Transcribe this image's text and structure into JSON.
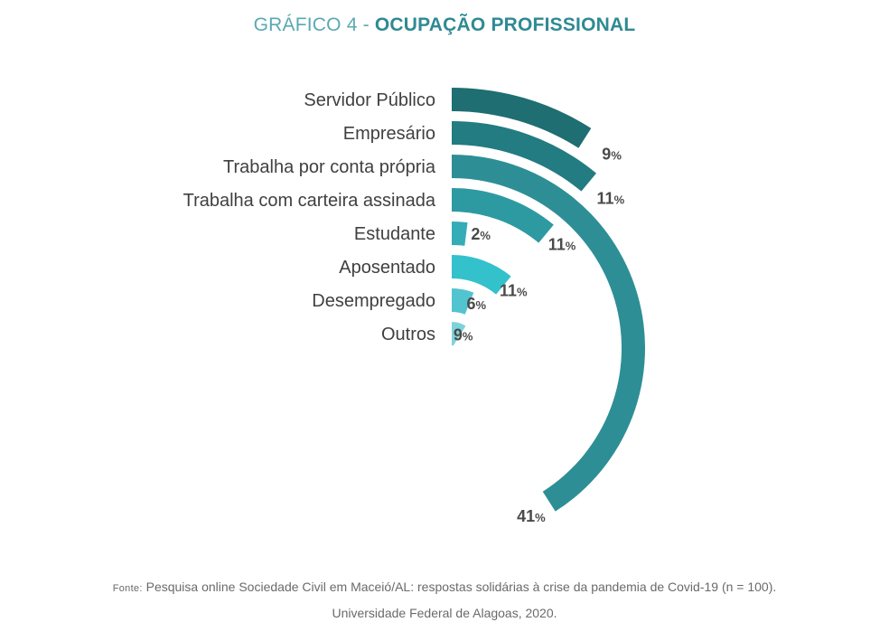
{
  "title": {
    "prefix": "GRÁFICO 4 -",
    "main": "OCUPAÇÃO PROFISSIONAL"
  },
  "chart_data": {
    "type": "radial_bar",
    "title": "GRÁFICO 4 - OCUPAÇÃO PROFISSIONAL",
    "unit": "%",
    "categories": [
      "Servidor Público",
      "Empresário",
      "Trabalha por conta própria",
      "Trabalha com carteira assinada",
      "Estudante",
      "Aposentado",
      "Desempregado",
      "Outros"
    ],
    "values": [
      9,
      11,
      41,
      11,
      2,
      11,
      6,
      9
    ],
    "colors": [
      "#1e6e72",
      "#227c81",
      "#2d8f95",
      "#2d9aa2",
      "#34adb6",
      "#33c1cc",
      "#52c4cf",
      "#7ed3db"
    ]
  },
  "source": {
    "label": "Fonte:",
    "text": "Pesquisa online Sociedade Civil em Maceió/AL: respostas solidárias à crise da pandemia de Covid-19 (n = 100).",
    "line2": "Universidade Federal de Alagoas, 2020."
  }
}
